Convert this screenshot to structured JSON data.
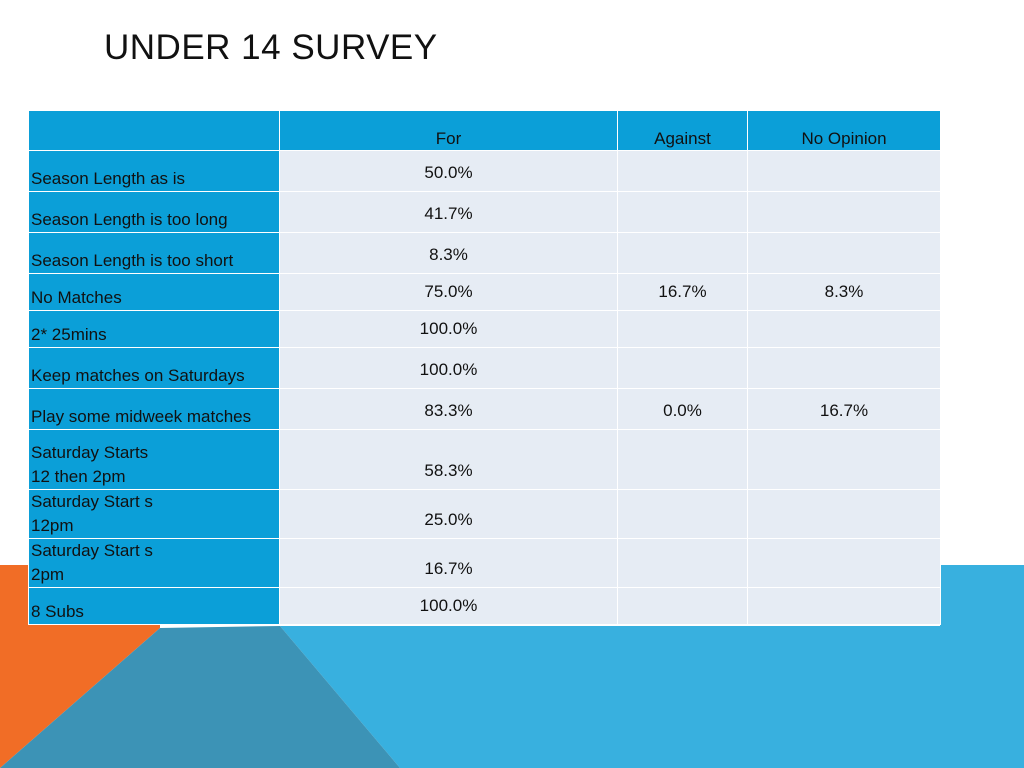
{
  "title": "UNDER 14 SURVEY",
  "colors": {
    "table_header": "#0b9fd8",
    "table_cell": "#e6ecf4",
    "deco_blue": "#38b0df",
    "deco_orange": "#f16d26"
  },
  "table": {
    "headers": [
      "",
      "For",
      "Against",
      "No Opinion"
    ],
    "rows": [
      {
        "label": "Season Length as is",
        "for": "50.0%",
        "against": "",
        "no_opinion": ""
      },
      {
        "label": "Season Length is too long",
        "for": "41.7%",
        "against": "",
        "no_opinion": ""
      },
      {
        "label": "Season Length is too short",
        "for": "8.3%",
        "against": "",
        "no_opinion": ""
      },
      {
        "label": "No Matches",
        "for": "75.0%",
        "against": "16.7%",
        "no_opinion": "8.3%"
      },
      {
        "label": "2* 25mins",
        "for": "100.0%",
        "against": "",
        "no_opinion": ""
      },
      {
        "label": "Keep matches on Saturdays",
        "for": "100.0%",
        "against": "",
        "no_opinion": ""
      },
      {
        "label": "Play some midweek matches",
        "for": "83.3%",
        "against": "0.0%",
        "no_opinion": "16.7%"
      },
      {
        "label": "Saturday Starts\n12 then 2pm",
        "for": "58.3%",
        "against": "",
        "no_opinion": ""
      },
      {
        "label": "Saturday Start s\n12pm",
        "for": "25.0%",
        "against": "",
        "no_opinion": ""
      },
      {
        "label": "Saturday Start s\n2pm",
        "for": "16.7%",
        "against": "",
        "no_opinion": ""
      },
      {
        "label": "8 Subs",
        "for": "100.0%",
        "against": "",
        "no_opinion": ""
      }
    ]
  }
}
